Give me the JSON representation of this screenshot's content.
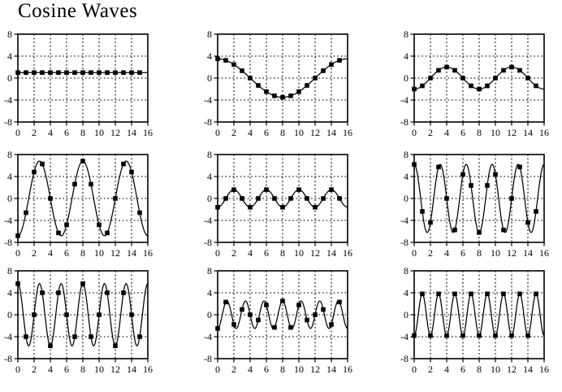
{
  "page": {
    "title": "Cosine Waves",
    "background_color": "#ffffff",
    "ink_color": "#000000"
  },
  "axes": {
    "xlim": [
      0,
      16
    ],
    "ylim": [
      -8,
      8
    ],
    "xticks": [
      0,
      2,
      4,
      6,
      8,
      10,
      12,
      14,
      16
    ],
    "yticks": [
      -8,
      -4,
      0,
      4,
      8
    ],
    "x_gridlines": [
      2,
      4,
      6,
      8,
      10,
      12,
      14
    ],
    "y_gridlines": [
      -4,
      0,
      4
    ],
    "grid_style": "dashed",
    "marker": "filled-square",
    "line_color": "#000000",
    "samples_per_plot": 16
  },
  "chart_data": [
    {
      "type": "line",
      "name": "cosine-k0",
      "frequency_cycles": 0,
      "amplitude": 1,
      "x": [
        0,
        1,
        2,
        3,
        4,
        5,
        6,
        7,
        8,
        9,
        10,
        11,
        12,
        13,
        14,
        15
      ],
      "samples": [
        1,
        1,
        1,
        1,
        1,
        1,
        1,
        1,
        1,
        1,
        1,
        1,
        1,
        1,
        1,
        1
      ]
    },
    {
      "type": "line",
      "name": "cosine-k1",
      "frequency_cycles": 1,
      "amplitude": 3.5,
      "x": [
        0,
        1,
        2,
        3,
        4,
        5,
        6,
        7,
        8,
        9,
        10,
        11,
        12,
        13,
        14,
        15
      ],
      "samples": [
        3.5,
        3.23,
        2.47,
        1.34,
        0,
        -1.34,
        -2.47,
        -3.23,
        -3.5,
        -3.23,
        -2.47,
        -1.34,
        0,
        1.34,
        2.47,
        3.23
      ]
    },
    {
      "type": "line",
      "name": "cosine-k2",
      "frequency_cycles": 2,
      "amplitude": -2,
      "x": [
        0,
        1,
        2,
        3,
        4,
        5,
        6,
        7,
        8,
        9,
        10,
        11,
        12,
        13,
        14,
        15
      ],
      "samples": [
        -2,
        -1.41,
        0,
        1.41,
        2,
        1.41,
        0,
        -1.41,
        -2,
        -1.41,
        0,
        1.41,
        2,
        1.41,
        0,
        -1.41
      ]
    },
    {
      "type": "line",
      "name": "cosine-k3",
      "frequency_cycles": 3,
      "amplitude": -6.8,
      "x": [
        0,
        1,
        2,
        3,
        4,
        5,
        6,
        7,
        8,
        9,
        10,
        11,
        12,
        13,
        14,
        15
      ],
      "samples": [
        -6.8,
        -2.6,
        4.81,
        6.28,
        0,
        -6.28,
        -4.81,
        2.6,
        6.8,
        2.6,
        -4.81,
        -6.28,
        0,
        6.28,
        4.81,
        -2.6
      ]
    },
    {
      "type": "line",
      "name": "cosine-k4",
      "frequency_cycles": 4,
      "amplitude": -1.6,
      "x": [
        0,
        1,
        2,
        3,
        4,
        5,
        6,
        7,
        8,
        9,
        10,
        11,
        12,
        13,
        14,
        15
      ],
      "samples": [
        -1.6,
        0,
        1.6,
        0,
        -1.6,
        0,
        1.6,
        0,
        -1.6,
        0,
        1.6,
        0,
        -1.6,
        0,
        1.6,
        0
      ]
    },
    {
      "type": "line",
      "name": "cosine-k5",
      "frequency_cycles": 5,
      "amplitude": 6.2,
      "x": [
        0,
        1,
        2,
        3,
        4,
        5,
        6,
        7,
        8,
        9,
        10,
        11,
        12,
        13,
        14,
        15
      ],
      "samples": [
        6.2,
        -2.37,
        -4.38,
        5.73,
        0,
        -5.73,
        4.38,
        2.37,
        -6.2,
        2.37,
        4.38,
        -5.73,
        0,
        5.73,
        -4.38,
        -2.37
      ]
    },
    {
      "type": "line",
      "name": "cosine-k6",
      "frequency_cycles": 6,
      "amplitude": 5.66,
      "x": [
        0,
        1,
        2,
        3,
        4,
        5,
        6,
        7,
        8,
        9,
        10,
        11,
        12,
        13,
        14,
        15
      ],
      "samples": [
        5.66,
        -4,
        0,
        4,
        -5.66,
        4,
        0,
        -4,
        5.66,
        -4,
        0,
        4,
        -5.66,
        4,
        0,
        -4
      ]
    },
    {
      "type": "line",
      "name": "cosine-k7",
      "frequency_cycles": 7,
      "amplitude": -2.5,
      "x": [
        0,
        1,
        2,
        3,
        4,
        5,
        6,
        7,
        8,
        9,
        10,
        11,
        12,
        13,
        14,
        15
      ],
      "samples": [
        -2.5,
        2.31,
        -1.77,
        0.96,
        0,
        -0.96,
        1.77,
        -2.31,
        2.5,
        -2.31,
        1.77,
        -0.96,
        0,
        0.96,
        -1.77,
        2.31
      ]
    },
    {
      "type": "line",
      "name": "cosine-k8",
      "frequency_cycles": 8,
      "amplitude": -3.8,
      "x": [
        0,
        1,
        2,
        3,
        4,
        5,
        6,
        7,
        8,
        9,
        10,
        11,
        12,
        13,
        14,
        15
      ],
      "samples": [
        -3.8,
        3.8,
        -3.8,
        3.8,
        -3.8,
        3.8,
        -3.8,
        3.8,
        -3.8,
        3.8,
        -3.8,
        3.8,
        -3.8,
        3.8,
        -3.8,
        3.8
      ]
    }
  ]
}
